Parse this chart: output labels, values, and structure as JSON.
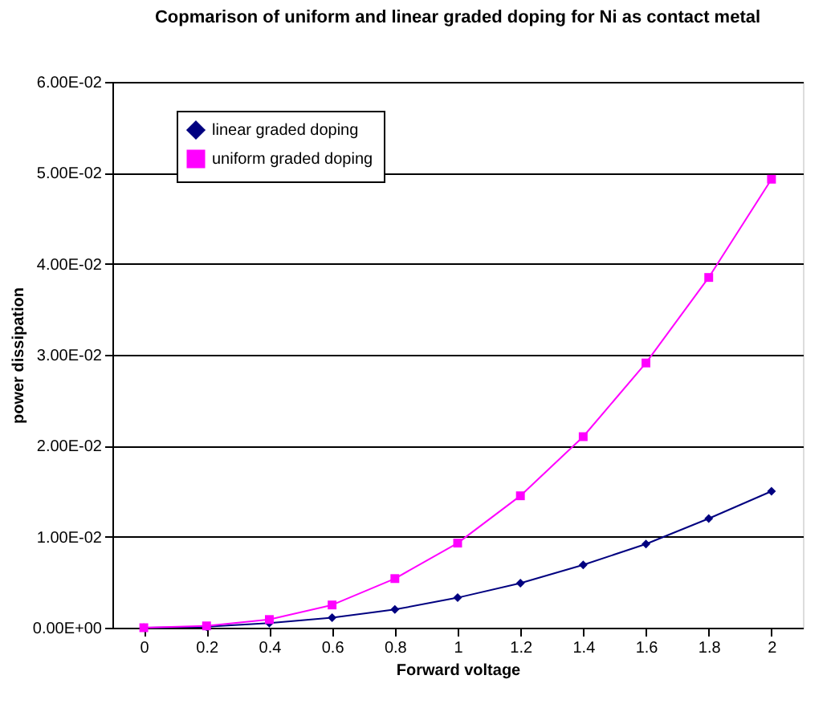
{
  "chart_data": {
    "type": "line",
    "title": "Copmarison of uniform and linear graded doping for Ni as contact metal",
    "xlabel": "Forward voltage",
    "ylabel": "power dissipation",
    "categories": [
      "0",
      "0.2",
      "0.4",
      "0.6",
      "0.8",
      "1",
      "1.2",
      "1.4",
      "1.6",
      "1.8",
      "2"
    ],
    "series": [
      {
        "name": "linear graded doping",
        "color": "#000080",
        "marker": "diamond",
        "values": [
          0,
          0.0001,
          0.0005,
          0.0011,
          0.002,
          0.0033,
          0.0049,
          0.0069,
          0.0092,
          0.012,
          0.015
        ]
      },
      {
        "name": "uniform graded doping",
        "color": "#ff00ff",
        "marker": "square",
        "values": [
          0,
          0.0002,
          0.0009,
          0.0025,
          0.0054,
          0.0093,
          0.0145,
          0.021,
          0.0291,
          0.0385,
          0.0493
        ]
      }
    ],
    "ylim": [
      0,
      0.06
    ],
    "yticks": [
      {
        "value": 0,
        "label": "0.00E+00"
      },
      {
        "value": 0.01,
        "label": "1.00E-02"
      },
      {
        "value": 0.02,
        "label": "2.00E-02"
      },
      {
        "value": 0.03,
        "label": "3.00E-02"
      },
      {
        "value": 0.04,
        "label": "4.00E-02"
      },
      {
        "value": 0.05,
        "label": "5.00E-02"
      },
      {
        "value": 0.06,
        "label": "6.00E-02"
      }
    ],
    "grid": "y",
    "legend": "top left",
    "line_style": "solid"
  }
}
